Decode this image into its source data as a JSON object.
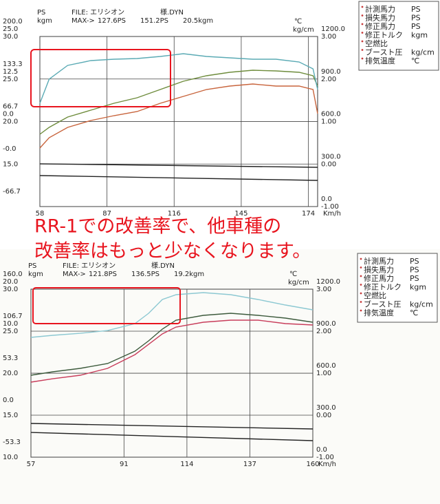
{
  "annotation": [
    "RR-1での改善率で、他車種の",
    "改善率はもっと少なくなります。"
  ],
  "chart_data": [
    {
      "type": "line",
      "header": {
        "ps": "PS",
        "kgm": "kgm",
        "file": "FILE: エリシオン",
        "file_suffix": "様.DYN",
        "max_label": "MAX->",
        "max_values": [
          "127.6PS",
          "151.2PS",
          "20.5kgm"
        ],
        "temp_unit": "℃",
        "boost_unit": "kg/cm"
      },
      "xlabel": "Km/h",
      "xlim": [
        58,
        178
      ],
      "xticks": [
        58,
        87,
        116,
        145,
        174
      ],
      "ylim": [
        -66.7,
        200
      ],
      "yticks": [
        {
          "value": 200,
          "label": "200.0"
        },
        133.3,
        66.7,
        {
          "value": 0,
          "label": "-0.0"
        },
        -66.7
      ],
      "kgm_axis": {
        "lim": [
          -25,
          25
        ],
        "ticks": [
          {
            "value": 25,
            "label": "25.0"
          },
          12.5,
          {
            "value": 0,
            "label": "0.0"
          }
        ]
      },
      "afr_axis": {
        "lim": [
          10,
          30
        ],
        "ticks": [
          {
            "value": 30,
            "label": "30.0"
          },
          {
            "value": 25,
            "label": "25.0"
          },
          {
            "value": 20,
            "label": "20.0"
          },
          {
            "value": 15,
            "label": "15.0"
          }
        ]
      },
      "temp_axis": {
        "lim": [
          0,
          1200
        ],
        "ticks": [
          {
            "value": 1200,
            "label": "1200.0"
          },
          {
            "value": 900,
            "label": "900.0"
          },
          {
            "value": 600,
            "label": "600.0"
          },
          {
            "value": 300,
            "label": "300.0"
          },
          {
            "value": 0,
            "label": "0.0"
          }
        ]
      },
      "boost_axis": {
        "lim": [
          -1,
          3
        ],
        "ticks": [
          {
            "value": 3,
            "label": "3.00"
          },
          {
            "value": 2,
            "label": "2.00"
          },
          {
            "value": 1,
            "label": "1.00"
          },
          {
            "value": 0,
            "label": "0.00"
          },
          {
            "value": -1,
            "label": "-1.00"
          }
        ]
      },
      "grid": true,
      "series": [
        {
          "color": "#c8643c",
          "x": [
            58,
            62,
            70,
            80,
            90,
            100,
            110,
            120,
            130,
            140,
            150,
            160,
            170,
            176,
            178
          ],
          "values": [
            25.1,
            41.3,
            57.5,
            68.3,
            75.8,
            82.3,
            95.3,
            106.1,
            116.9,
            122.3,
            125.5,
            122.3,
            122.3,
            116.9,
            79.1
          ]
        },
        {
          "color": "#6e8c3c",
          "x": [
            58,
            62,
            70,
            80,
            90,
            100,
            110,
            120,
            130,
            140,
            150,
            160,
            170,
            176,
            178
          ],
          "values": [
            46.7,
            57.5,
            73.7,
            84.5,
            95.3,
            103.9,
            116.9,
            129.8,
            138.5,
            143.9,
            147.1,
            146,
            143.9,
            138.5,
            122.3
          ]
        },
        {
          "color": "#5aaab4",
          "x": [
            58,
            62,
            70,
            80,
            90,
            100,
            110,
            120,
            130,
            140,
            150,
            160,
            170,
            176,
            178
          ],
          "values": [
            95.3,
            133.1,
            154.7,
            162.2,
            164.4,
            165.4,
            168.7,
            173,
            168.7,
            166.5,
            164.4,
            164.4,
            160,
            149.3,
            116.9
          ]
        },
        {
          "color": "#222222",
          "x": [
            58,
            178
          ],
          "values": [
            0.3,
            -5.1
          ]
        },
        {
          "color": "#222222",
          "x": [
            58,
            178
          ],
          "values": [
            -18.1,
            -25.7
          ]
        }
      ],
      "legend": [
        {
          "label": "計測馬力",
          "unit": "PS"
        },
        {
          "label": "損失馬力",
          "unit": "PS"
        },
        {
          "label": "修正馬力",
          "unit": "PS"
        },
        {
          "label": "修正トルク",
          "unit": "kgm"
        },
        {
          "label": "空燃比",
          "unit": ""
        },
        {
          "label": "ブースト圧",
          "unit": "kg/cm"
        },
        {
          "label": "排気温度",
          "unit": "℃"
        }
      ]
    },
    {
      "type": "line",
      "header": {
        "ps": "PS",
        "kgm": "kgm",
        "file": "FILE: エリシオン",
        "file_suffix": "様.DYN",
        "max_label": "MAX->",
        "max_values": [
          "121.8PS",
          "136.5PS",
          "19.2kgm"
        ],
        "temp_unit": "℃",
        "boost_unit": "kg/cm"
      },
      "xlabel": "Km/h",
      "xlim": [
        57,
        160
      ],
      "xticks": [
        57,
        91,
        114,
        137,
        160
      ],
      "ylim": [
        -53.3,
        160
      ],
      "yticks": [
        {
          "value": 160,
          "label": "160.0"
        },
        106.7,
        53.3,
        {
          "value": 0,
          "label": "0.0"
        },
        -53.3
      ],
      "kgm_axis": {
        "lim": [
          -20,
          20
        ],
        "ticks": [
          {
            "value": 20,
            "label": "20.0"
          },
          {
            "value": 10,
            "label": "10.0"
          }
        ]
      },
      "afr_axis": {
        "lim": [
          10,
          30
        ],
        "ticks": [
          {
            "value": 30,
            "label": "30.0"
          },
          {
            "value": 25,
            "label": "25.0"
          },
          {
            "value": 20,
            "label": "20.0"
          },
          {
            "value": 15,
            "label": "15.0"
          },
          {
            "value": 10,
            "label": "10.0"
          }
        ]
      },
      "temp_axis": {
        "lim": [
          0,
          1200
        ],
        "ticks": [
          {
            "value": 1200,
            "label": "1200.0"
          },
          {
            "value": 900,
            "label": "900.0"
          },
          {
            "value": 600,
            "label": "600.0"
          },
          {
            "value": 300,
            "label": "300.0"
          },
          {
            "value": 0,
            "label": "0.0"
          }
        ]
      },
      "boost_axis": {
        "lim": [
          -1,
          3
        ],
        "ticks": [
          {
            "value": 3,
            "label": "3.00"
          },
          {
            "value": 2,
            "label": "2.00"
          },
          {
            "value": 1,
            "label": "1.00"
          },
          {
            "value": 0,
            "label": "0.00"
          },
          {
            "value": -1,
            "label": "-1.00"
          }
        ]
      },
      "grid": true,
      "series": [
        {
          "color": "#c83c5a",
          "x": [
            57,
            65,
            75,
            85,
            95,
            100,
            105,
            110,
            120,
            130,
            140,
            150,
            160
          ],
          "values": [
            42,
            46.3,
            50.7,
            59.5,
            76.9,
            90,
            103.2,
            111.9,
            118,
            120.7,
            120.7,
            116.3,
            114.5
          ]
        },
        {
          "color": "#3c5a3c",
          "x": [
            57,
            65,
            75,
            85,
            95,
            100,
            105,
            110,
            120,
            130,
            140,
            150,
            160
          ],
          "values": [
            50.7,
            55.1,
            59.5,
            65.6,
            81.3,
            94.4,
            109.3,
            120.7,
            126.8,
            129.4,
            126.8,
            123.3,
            118
          ]
        },
        {
          "color": "#8cc8d2",
          "x": [
            57,
            65,
            75,
            85,
            95,
            100,
            105,
            110,
            120,
            130,
            140,
            150,
            160
          ],
          "values": [
            98.8,
            101.4,
            104,
            107.5,
            116.3,
            129.4,
            146.9,
            153,
            155.6,
            153,
            146.9,
            139.9,
            133.8
          ]
        },
        {
          "color": "#222222",
          "x": [
            57,
            160
          ],
          "values": [
            -10.5,
            -17.5
          ]
        },
        {
          "color": "#222222",
          "x": [
            57,
            160
          ],
          "values": [
            -21.9,
            -32.3
          ]
        }
      ],
      "legend": [
        {
          "label": "計測馬力",
          "unit": "PS"
        },
        {
          "label": "損失馬力",
          "unit": "PS"
        },
        {
          "label": "修正馬力",
          "unit": "PS"
        },
        {
          "label": "修正トルク",
          "unit": "kgm"
        },
        {
          "label": "空燃比",
          "unit": ""
        },
        {
          "label": "ブースト圧",
          "unit": "kg/cm"
        },
        {
          "label": "排気温度",
          "unit": "℃"
        }
      ]
    }
  ]
}
